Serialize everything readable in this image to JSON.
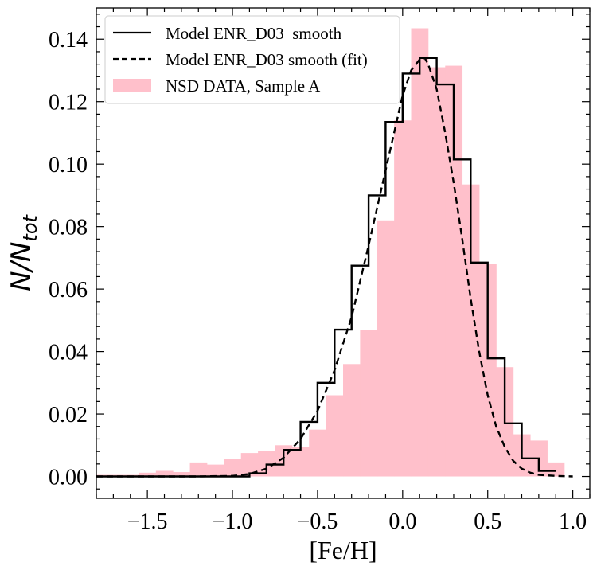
{
  "chart_data": {
    "type": "histogram",
    "xlabel": "[Fe/H]",
    "ylabel": {
      "base": "N/N",
      "sub": "tot"
    },
    "xlim": [
      -1.8,
      1.1
    ],
    "ylim": [
      -0.007,
      0.15
    ],
    "xticks": [
      -1.5,
      -1.0,
      -0.5,
      0.0,
      0.5,
      1.0
    ],
    "xtick_labels": [
      "−1.5",
      "−1.0",
      "−0.5",
      "0.0",
      "0.5",
      "1.0"
    ],
    "yticks": [
      0.0,
      0.02,
      0.04,
      0.06,
      0.08,
      0.1,
      0.12,
      0.14
    ],
    "ytick_labels": [
      "0.00",
      "0.02",
      "0.04",
      "0.06",
      "0.08",
      "0.10",
      "0.12",
      "0.14"
    ],
    "legend": {
      "position": "top-left",
      "entries": [
        {
          "label": "Model ENR_D03  smooth",
          "style": "solid-line"
        },
        {
          "label": "Model ENR_D03 smooth (fit)",
          "style": "dashed-line"
        },
        {
          "label": "NSD DATA, Sample A",
          "style": "filled-patch"
        }
      ]
    },
    "colors": {
      "data_fill": "#ffc0cb",
      "model_line": "#000000"
    },
    "data_histogram": {
      "name": "NSD DATA, Sample A",
      "bin_edges": [
        -1.8,
        -1.55,
        -1.45,
        -1.35,
        -1.25,
        -1.15,
        -1.05,
        -0.95,
        -0.85,
        -0.75,
        -0.65,
        -0.55,
        -0.45,
        -0.35,
        -0.25,
        -0.15,
        -0.05,
        0.05,
        0.15,
        0.25,
        0.35,
        0.45,
        0.55,
        0.65,
        0.75,
        0.85,
        0.95
      ],
      "values": [
        0.0005,
        0.0012,
        0.0018,
        0.0014,
        0.0045,
        0.0038,
        0.0055,
        0.0075,
        0.0082,
        0.01,
        0.0095,
        0.015,
        0.026,
        0.036,
        0.047,
        0.082,
        0.114,
        0.1435,
        0.131,
        0.1315,
        0.0935,
        0.068,
        0.035,
        0.0135,
        0.0115,
        0.0045
      ]
    },
    "model_histogram": {
      "name": "Model ENR_D03  smooth",
      "bin_edges": [
        -1.8,
        -0.9,
        -0.8,
        -0.7,
        -0.6,
        -0.5,
        -0.4,
        -0.3,
        -0.2,
        -0.1,
        0.0,
        0.1,
        0.2,
        0.3,
        0.4,
        0.5,
        0.6,
        0.7,
        0.8,
        0.9
      ],
      "values": [
        0.0,
        0.001,
        0.0038,
        0.0085,
        0.0175,
        0.03,
        0.047,
        0.0675,
        0.09,
        0.1135,
        0.129,
        0.134,
        0.1255,
        0.1015,
        0.0685,
        0.0378,
        0.017,
        0.0058,
        0.0018
      ]
    },
    "fit_curve": {
      "name": "Model ENR_D03 smooth (fit)",
      "x": [
        -1.8,
        -1.5,
        -1.2,
        -1.0,
        -0.9,
        -0.8,
        -0.7,
        -0.6,
        -0.5,
        -0.4,
        -0.3,
        -0.2,
        -0.1,
        0.0,
        0.05,
        0.1,
        0.13,
        0.15,
        0.2,
        0.25,
        0.3,
        0.35,
        0.4,
        0.45,
        0.5,
        0.55,
        0.6,
        0.65,
        0.7,
        0.75,
        0.8,
        0.9,
        1.0
      ],
      "y": [
        0.0,
        0.0,
        0.0,
        0.0002,
        0.0008,
        0.0025,
        0.006,
        0.012,
        0.021,
        0.034,
        0.051,
        0.074,
        0.098,
        0.122,
        0.13,
        0.1335,
        0.134,
        0.132,
        0.124,
        0.11,
        0.094,
        0.076,
        0.057,
        0.04,
        0.026,
        0.016,
        0.0095,
        0.005,
        0.0025,
        0.0012,
        0.0005,
        0.0002,
        0.0
      ]
    }
  }
}
